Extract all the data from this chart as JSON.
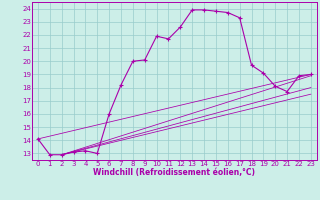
{
  "xlabel": "Windchill (Refroidissement éolien,°C)",
  "bg_color": "#cceee8",
  "line_color": "#aa00aa",
  "grid_color": "#99cccc",
  "xlim": [
    -0.5,
    23.5
  ],
  "ylim": [
    12.5,
    24.5
  ],
  "yticks": [
    13,
    14,
    15,
    16,
    17,
    18,
    19,
    20,
    21,
    22,
    23,
    24
  ],
  "xticks": [
    0,
    1,
    2,
    3,
    4,
    5,
    6,
    7,
    8,
    9,
    10,
    11,
    12,
    13,
    14,
    15,
    16,
    17,
    18,
    19,
    20,
    21,
    22,
    23
  ],
  "series": [
    [
      0,
      14.1
    ],
    [
      1,
      12.9
    ],
    [
      2,
      12.9
    ],
    [
      3,
      13.1
    ],
    [
      4,
      13.2
    ],
    [
      5,
      13.0
    ],
    [
      6,
      16.0
    ],
    [
      7,
      18.2
    ],
    [
      8,
      20.0
    ],
    [
      9,
      20.1
    ],
    [
      10,
      21.9
    ],
    [
      11,
      21.7
    ],
    [
      12,
      22.6
    ],
    [
      13,
      23.9
    ],
    [
      14,
      23.9
    ],
    [
      15,
      23.8
    ],
    [
      16,
      23.7
    ],
    [
      17,
      23.3
    ],
    [
      18,
      19.7
    ],
    [
      19,
      19.1
    ],
    [
      20,
      18.1
    ],
    [
      21,
      17.7
    ],
    [
      22,
      18.9
    ],
    [
      23,
      19.0
    ]
  ],
  "diag_lines": [
    [
      [
        0,
        14.1
      ],
      [
        23,
        19.0
      ]
    ],
    [
      [
        2,
        12.9
      ],
      [
        23,
        18.9
      ]
    ],
    [
      [
        2,
        12.9
      ],
      [
        23,
        18.0
      ]
    ],
    [
      [
        2,
        12.9
      ],
      [
        23,
        17.5
      ]
    ]
  ],
  "tick_fontsize": 5.0,
  "xlabel_fontsize": 5.5,
  "line_width": 0.8,
  "marker_size": 3.0
}
